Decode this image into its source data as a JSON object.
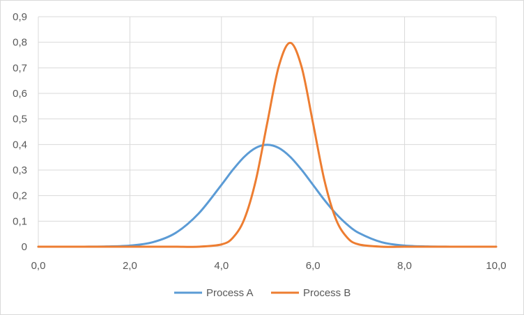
{
  "chart_data": {
    "type": "line",
    "title": "",
    "xlabel": "",
    "ylabel": "",
    "xlim": [
      0,
      10
    ],
    "ylim": [
      0,
      0.9
    ],
    "x_ticks": [
      0,
      2,
      4,
      6,
      8,
      10
    ],
    "x_tick_labels": [
      "0,0",
      "2,0",
      "4,0",
      "6,0",
      "8,0",
      "10,0"
    ],
    "y_ticks": [
      0,
      0.1,
      0.2,
      0.3,
      0.4,
      0.5,
      0.6,
      0.7,
      0.8,
      0.9
    ],
    "y_tick_labels": [
      "0",
      "0,1",
      "0,2",
      "0,3",
      "0,4",
      "0,5",
      "0,6",
      "0,7",
      "0,8",
      "0,9"
    ],
    "grid": true,
    "legend_position": "bottom",
    "x": [
      0,
      0.5,
      1,
      1.5,
      2,
      2.5,
      3,
      3.5,
      4,
      4.25,
      4.5,
      4.75,
      5,
      5.25,
      5.5,
      5.75,
      6,
      6.25,
      6.5,
      6.75,
      7,
      7.5,
      8,
      8.5,
      9,
      9.5,
      10
    ],
    "series": [
      {
        "name": "Process A",
        "color": "#5b9bd5",
        "values": [
          0.0,
          0.0,
          0.0001,
          0.0009,
          0.0044,
          0.0175,
          0.054,
          0.1295,
          0.242,
          0.3011,
          0.3521,
          0.3867,
          0.3989,
          0.3867,
          0.3521,
          0.3011,
          0.242,
          0.1826,
          0.1295,
          0.0863,
          0.054,
          0.0175,
          0.0044,
          0.0009,
          0.0001,
          0.0,
          0.0
        ]
      },
      {
        "name": "Process B",
        "color": "#ed7d31",
        "values": [
          0.0,
          0.0,
          0.0,
          0.0,
          0.0,
          0.0,
          0.0,
          0.0001,
          0.0089,
          0.0352,
          0.108,
          0.259,
          0.4839,
          0.7041,
          0.7979,
          0.7041,
          0.4839,
          0.259,
          0.108,
          0.0352,
          0.0089,
          0.0001,
          0.0,
          0.0,
          0.0,
          0.0,
          0.0
        ]
      }
    ]
  }
}
